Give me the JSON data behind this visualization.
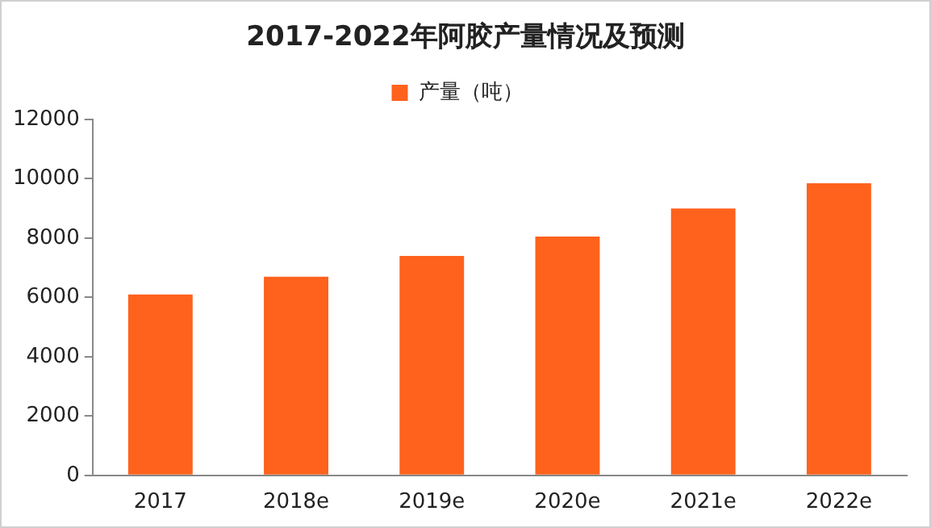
{
  "chart_data": {
    "type": "bar",
    "title": "2017-2022年阿胶产量情况及预测",
    "categories": [
      "2017",
      "2018e",
      "2019e",
      "2020e",
      "2021e",
      "2022e"
    ],
    "series": [
      {
        "name": "产量（吨）",
        "color": "#fe621d",
        "values": [
          6100,
          6700,
          7400,
          8050,
          9000,
          9850
        ]
      }
    ],
    "ylim": [
      0,
      12000
    ],
    "yticks": [
      0,
      2000,
      4000,
      6000,
      8000,
      10000,
      12000
    ],
    "grid": false,
    "legend": "top"
  }
}
